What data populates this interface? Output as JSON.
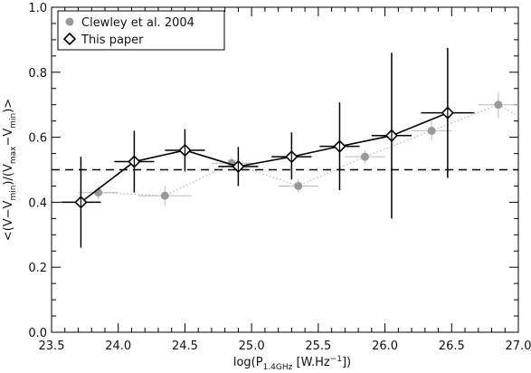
{
  "chart_data": {
    "type": "scatter",
    "xlabel": "log(P",
    "xlabel_sub": "1.4GHz",
    "xlabel_unit_pre": " [W.Hz",
    "xlabel_unit_sup": "−1",
    "xlabel_unit_post": "])",
    "ylabel_parts": [
      {
        "t": "<(V−V",
        "s": "normal"
      },
      {
        "t": "min",
        "s": "sub"
      },
      {
        "t": ")/(V",
        "s": "normal"
      },
      {
        "t": "max",
        "s": "sub"
      },
      {
        "t": "−V",
        "s": "normal"
      },
      {
        "t": "min",
        "s": "sub"
      },
      {
        "t": ")>",
        "s": "normal"
      }
    ],
    "xlim": [
      23.5,
      27.0
    ],
    "ylim": [
      0.0,
      1.0
    ],
    "xticks": [
      "23.5",
      "24.0",
      "24.5",
      "25.0",
      "25.5",
      "26.0",
      "26.5",
      "27.0"
    ],
    "yticks": [
      "0.0",
      "0.2",
      "0.4",
      "0.6",
      "0.8",
      "1.0"
    ],
    "reference_line": {
      "y": 0.5,
      "style": "dashed"
    },
    "legend": {
      "placement": "top-left",
      "entries": [
        {
          "label": "Clewley et al. 2004",
          "marker": "filled-circle",
          "color": "#999999"
        },
        {
          "label": "This paper",
          "marker": "open-diamond",
          "color": "#000000"
        }
      ]
    },
    "series": [
      {
        "name": "Clewley et al. 2004",
        "color": "#999999",
        "line": "dotted",
        "marker": "filled-circle",
        "points": [
          {
            "x": 23.85,
            "y": 0.43,
            "xerr": 0.15,
            "yerr": 0.02
          },
          {
            "x": 24.35,
            "y": 0.42,
            "xerr": 0.2,
            "yerr": 0.03
          },
          {
            "x": 24.85,
            "y": 0.52,
            "xerr": 0.15,
            "yerr": 0.02
          },
          {
            "x": 25.35,
            "y": 0.45,
            "xerr": 0.15,
            "yerr": 0.02
          },
          {
            "x": 25.85,
            "y": 0.54,
            "xerr": 0.15,
            "yerr": 0.02
          },
          {
            "x": 26.35,
            "y": 0.62,
            "xerr": 0.15,
            "yerr": 0.03
          },
          {
            "x": 26.85,
            "y": 0.7,
            "xerr": 0.15,
            "yerr": 0.04
          }
        ]
      },
      {
        "name": "This paper",
        "color": "#000000",
        "line": "solid",
        "marker": "open-diamond",
        "points": [
          {
            "x": 23.72,
            "y": 0.4,
            "xerr": 0.15,
            "yerr_low": 0.14,
            "yerr_high": 0.14
          },
          {
            "x": 24.12,
            "y": 0.525,
            "xerr": 0.15,
            "yerr_low": 0.095,
            "yerr_high": 0.095
          },
          {
            "x": 24.5,
            "y": 0.56,
            "xerr": 0.15,
            "yerr_low": 0.065,
            "yerr_high": 0.065
          },
          {
            "x": 24.9,
            "y": 0.51,
            "xerr": 0.15,
            "yerr_low": 0.06,
            "yerr_high": 0.06
          },
          {
            "x": 25.3,
            "y": 0.54,
            "xerr": 0.15,
            "yerr_low": 0.07,
            "yerr_high": 0.075
          },
          {
            "x": 25.66,
            "y": 0.572,
            "xerr": 0.15,
            "yerr_low": 0.135,
            "yerr_high": 0.135
          },
          {
            "x": 26.05,
            "y": 0.605,
            "xerr": 0.15,
            "yerr_low": 0.255,
            "yerr_high": 0.255
          },
          {
            "x": 26.47,
            "y": 0.675,
            "xerr": 0.2,
            "yerr_low": 0.2,
            "yerr_high": 0.2
          }
        ]
      }
    ]
  }
}
